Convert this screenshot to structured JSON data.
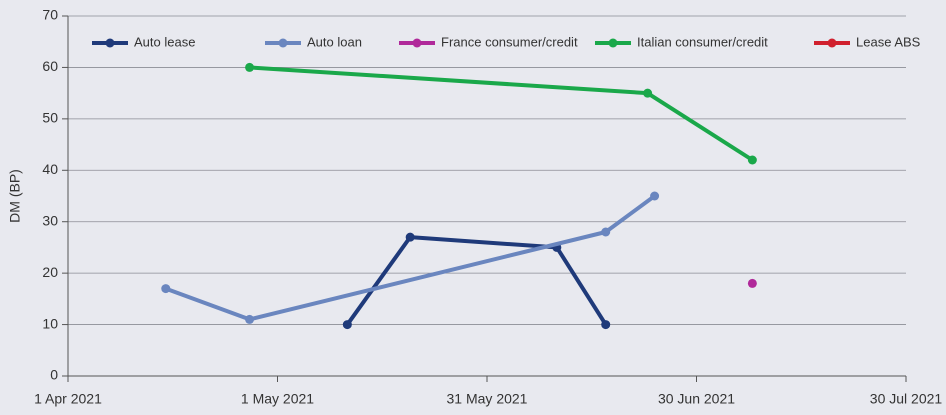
{
  "chart_data": {
    "type": "line",
    "ylabel": "DM (BP)",
    "xlim": [
      "2021-04-01",
      "2021-07-30"
    ],
    "xticks": [
      {
        "value": "2021-04-01",
        "label": "1 Apr 2021"
      },
      {
        "value": "2021-05-01",
        "label": "1 May 2021"
      },
      {
        "value": "2021-05-31",
        "label": "31 May 2021"
      },
      {
        "value": "2021-06-30",
        "label": "30 Jun 2021"
      },
      {
        "value": "2021-07-30",
        "label": "30 Jul 2021"
      }
    ],
    "ylim": [
      0,
      70
    ],
    "yticks": [
      0,
      10,
      20,
      30,
      40,
      50,
      60,
      70
    ],
    "grid": true,
    "legend": "top",
    "series": [
      {
        "name": "Auto lease",
        "color": "#1f3a7a",
        "x": [
          "2021-05-11",
          "2021-05-20",
          "2021-06-10",
          "2021-06-17"
        ],
        "values": [
          10,
          27,
          25,
          10
        ]
      },
      {
        "name": "Auto loan",
        "color": "#6a86bf",
        "x": [
          "2021-04-15",
          "2021-04-27",
          "2021-06-17",
          "2021-06-24"
        ],
        "values": [
          17,
          11,
          28,
          35
        ]
      },
      {
        "name": "France consumer/credit",
        "color": "#b0299a",
        "x": [
          "2021-07-08"
        ],
        "values": [
          18
        ]
      },
      {
        "name": "Italian consumer/credit",
        "color": "#1aa84a",
        "x": [
          "2021-04-27",
          "2021-06-23",
          "2021-07-08"
        ],
        "values": [
          60,
          55,
          42
        ]
      },
      {
        "name": "Lease ABS",
        "color": "#d0202e",
        "x": [],
        "values": []
      }
    ]
  }
}
